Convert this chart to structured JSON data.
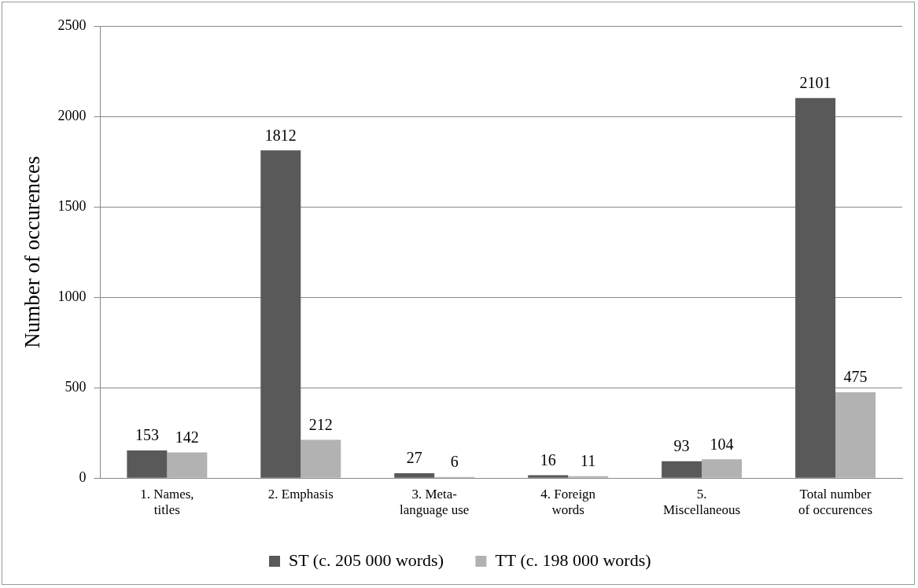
{
  "chart_data": {
    "type": "bar",
    "ylabel": "Number of occurences",
    "categories": [
      "1. Names, titles",
      "2. Emphasis",
      "3. Meta-language use",
      "4. Foreign words",
      "5. Miscellaneous",
      "Total number of occurences"
    ],
    "series": [
      {
        "name": "ST (c. 205 000 words)",
        "color": "#595959",
        "values": [
          153,
          1812,
          27,
          16,
          93,
          2101
        ]
      },
      {
        "name": "TT (c. 198 000 words)",
        "color": "#b2b2b2",
        "values": [
          142,
          212,
          6,
          11,
          104,
          475
        ]
      }
    ],
    "ylim": [
      0,
      2500
    ],
    "yticks": [
      0,
      500,
      1000,
      1500,
      2000,
      2500
    ],
    "grid": "y",
    "legend": "bottom",
    "data_labels": true
  }
}
